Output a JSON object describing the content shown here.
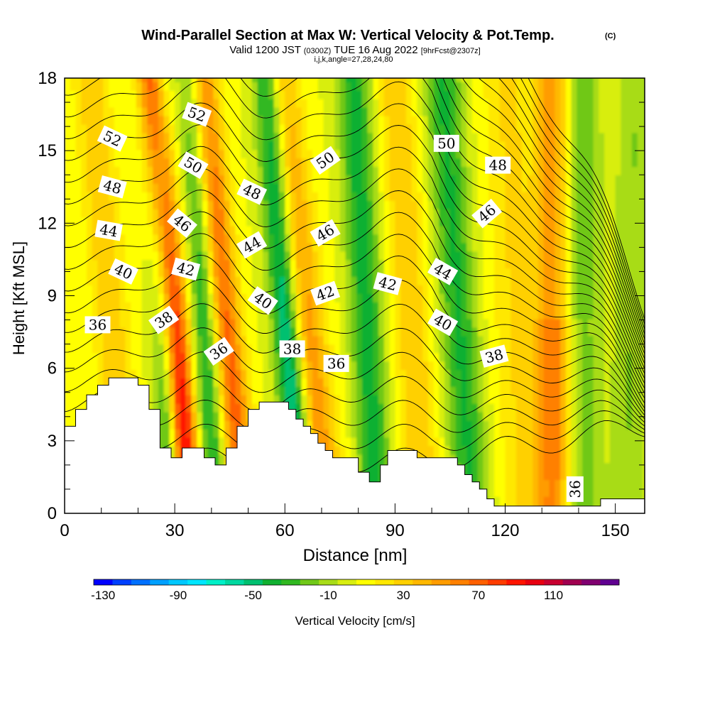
{
  "chart_data": {
    "type": "heatmap",
    "title": "Wind-Parallel Section at Max W: Vertical Velocity & Pot.Temp.",
    "title_tag": "(C)",
    "subtitle": {
      "prefix": "Valid 1200 JST",
      "utc": "(0300Z)",
      "date": "TUE 16 Aug 2022",
      "forecast": "[9hrFcst@2307z]"
    },
    "index_line": "i,j,k,angle=27,28,24,80",
    "xlabel": "Distance [nm]",
    "ylabel": "Height [Kft MSL]",
    "xlim": [
      0,
      158
    ],
    "ylim": [
      0,
      18
    ],
    "x_ticks": [
      "0",
      "30",
      "60",
      "90",
      "120",
      "150"
    ],
    "y_ticks": [
      "0",
      "3",
      "6",
      "9",
      "12",
      "15",
      "18"
    ],
    "colorbar": {
      "label": "Vertical Velocity [cm/s]",
      "tick_labels": [
        "-130",
        "-90",
        "-50",
        "-10",
        "30",
        "70",
        "110"
      ],
      "min": -135,
      "max": 145,
      "step": 10,
      "colors": [
        "#0000ff",
        "#0040ff",
        "#0070ff",
        "#00a0ff",
        "#00c8ff",
        "#00e6ff",
        "#00f0c8",
        "#00d8a0",
        "#00c070",
        "#10b030",
        "#30b820",
        "#70c818",
        "#a8dc18",
        "#d8ee10",
        "#ffff00",
        "#ffe800",
        "#ffd000",
        "#ffb800",
        "#ff9c00",
        "#ff8000",
        "#ff6000",
        "#ff3c00",
        "#ff1400",
        "#e80010",
        "#c80030",
        "#a00050",
        "#800070",
        "#600090"
      ]
    },
    "contour_variable": "Potential temperature",
    "contour_labels": [
      {
        "text": "52",
        "x": 13,
        "y": 15.5
      },
      {
        "text": "52",
        "x": 36,
        "y": 16.5
      },
      {
        "text": "48",
        "x": 13,
        "y": 13.5
      },
      {
        "text": "50",
        "x": 35,
        "y": 14.4
      },
      {
        "text": "44",
        "x": 12,
        "y": 11.7
      },
      {
        "text": "46",
        "x": 32,
        "y": 12.0
      },
      {
        "text": "48",
        "x": 51,
        "y": 13.3
      },
      {
        "text": "50",
        "x": 71,
        "y": 14.6
      },
      {
        "text": "40",
        "x": 16,
        "y": 10.0
      },
      {
        "text": "42",
        "x": 33,
        "y": 10.1
      },
      {
        "text": "44",
        "x": 51,
        "y": 11.1
      },
      {
        "text": "46",
        "x": 71,
        "y": 11.6
      },
      {
        "text": "50",
        "x": 104,
        "y": 15.3
      },
      {
        "text": "48",
        "x": 118,
        "y": 14.4
      },
      {
        "text": "46",
        "x": 115,
        "y": 12.4
      },
      {
        "text": "36",
        "x": 9,
        "y": 7.8
      },
      {
        "text": "38",
        "x": 27,
        "y": 8.0
      },
      {
        "text": "40",
        "x": 54,
        "y": 8.8
      },
      {
        "text": "42",
        "x": 71,
        "y": 9.1
      },
      {
        "text": "42",
        "x": 88,
        "y": 9.5
      },
      {
        "text": "44",
        "x": 103,
        "y": 10.0
      },
      {
        "text": "40",
        "x": 103,
        "y": 7.9
      },
      {
        "text": "36",
        "x": 42,
        "y": 6.7
      },
      {
        "text": "38",
        "x": 62,
        "y": 6.8
      },
      {
        "text": "36",
        "x": 74,
        "y": 6.2
      },
      {
        "text": "38",
        "x": 117,
        "y": 6.5
      },
      {
        "text": "36",
        "x": 139,
        "y": 1.0
      }
    ],
    "terrain": [
      [
        0,
        3.6
      ],
      [
        3,
        4.3
      ],
      [
        6,
        4.9
      ],
      [
        9,
        5.3
      ],
      [
        12,
        5.6
      ],
      [
        18,
        5.6
      ],
      [
        20,
        5.3
      ],
      [
        23,
        4.3
      ],
      [
        26,
        2.7
      ],
      [
        29,
        2.3
      ],
      [
        32,
        2.7
      ],
      [
        35,
        2.7
      ],
      [
        38,
        2.3
      ],
      [
        41,
        2.0
      ],
      [
        44,
        2.7
      ],
      [
        47,
        3.6
      ],
      [
        50,
        4.3
      ],
      [
        53,
        4.6
      ],
      [
        59,
        4.6
      ],
      [
        61,
        4.3
      ],
      [
        63,
        3.9
      ],
      [
        65,
        3.6
      ],
      [
        67,
        3.3
      ],
      [
        69,
        2.9
      ],
      [
        71,
        2.6
      ],
      [
        73,
        2.3
      ],
      [
        78,
        2.3
      ],
      [
        80,
        1.7
      ],
      [
        83,
        1.3
      ],
      [
        86,
        2.0
      ],
      [
        88,
        2.6
      ],
      [
        94,
        2.6
      ],
      [
        96,
        2.3
      ],
      [
        103,
        2.3
      ],
      [
        107,
        2.0
      ],
      [
        109,
        1.6
      ],
      [
        111,
        1.3
      ],
      [
        113,
        1.0
      ],
      [
        115,
        0.6
      ],
      [
        117,
        0.3
      ],
      [
        143,
        0.3
      ],
      [
        146,
        0.6
      ],
      [
        158,
        0.6
      ]
    ]
  }
}
